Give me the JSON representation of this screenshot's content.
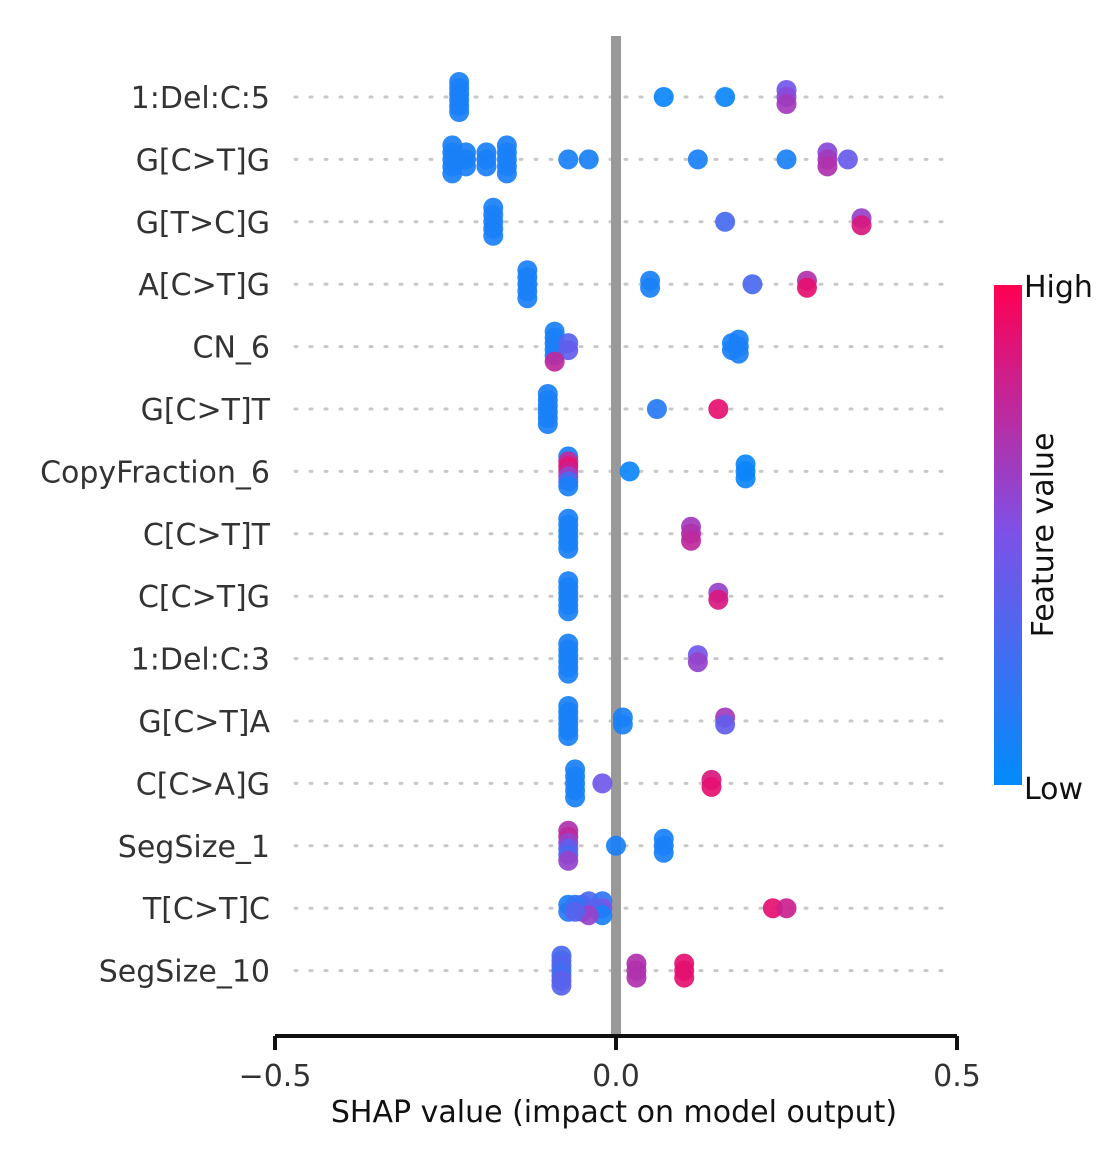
{
  "chart_data": {
    "type": "scatter",
    "subtype": "shap-beeswarm",
    "title": "",
    "xlabel": "SHAP value (impact on model output)",
    "xlim": [
      -0.5,
      0.5
    ],
    "xticks": [
      -0.5,
      0.0,
      0.5
    ],
    "xtick_labels": [
      "−0.5",
      "0.0",
      "0.5"
    ],
    "zero_line_color": "#999999",
    "colorbar": {
      "title": "Feature value",
      "high_label": "High",
      "low_label": "Low",
      "low_color": "#008bfb",
      "mid_color": "#7c52e8",
      "high_color": "#ff0052"
    },
    "features": [
      {
        "name": "1:Del:C:5",
        "points": [
          {
            "x": -0.23,
            "v": 0.1
          },
          {
            "x": -0.23,
            "v": 0.1
          },
          {
            "x": -0.23,
            "v": 0.1
          },
          {
            "x": -0.23,
            "v": 0.1
          },
          {
            "x": -0.23,
            "v": 0.1
          },
          {
            "x": -0.23,
            "v": 0.1
          },
          {
            "x": 0.07,
            "v": 0.05
          },
          {
            "x": 0.16,
            "v": 0.05
          },
          {
            "x": 0.25,
            "v": 0.45
          },
          {
            "x": 0.25,
            "v": 0.55
          },
          {
            "x": 0.25,
            "v": 0.65
          }
        ]
      },
      {
        "name": "G[C>T]G",
        "points": [
          {
            "x": -0.24,
            "v": 0.1
          },
          {
            "x": -0.24,
            "v": 0.1
          },
          {
            "x": -0.24,
            "v": 0.1
          },
          {
            "x": -0.24,
            "v": 0.1
          },
          {
            "x": -0.24,
            "v": 0.1
          },
          {
            "x": -0.22,
            "v": 0.1
          },
          {
            "x": -0.22,
            "v": 0.1
          },
          {
            "x": -0.22,
            "v": 0.1
          },
          {
            "x": -0.19,
            "v": 0.1
          },
          {
            "x": -0.19,
            "v": 0.1
          },
          {
            "x": -0.19,
            "v": 0.1
          },
          {
            "x": -0.16,
            "v": 0.1
          },
          {
            "x": -0.16,
            "v": 0.1
          },
          {
            "x": -0.16,
            "v": 0.1
          },
          {
            "x": -0.16,
            "v": 0.1
          },
          {
            "x": -0.16,
            "v": 0.1
          },
          {
            "x": -0.07,
            "v": 0.1
          },
          {
            "x": -0.04,
            "v": 0.1
          },
          {
            "x": 0.12,
            "v": 0.1
          },
          {
            "x": 0.25,
            "v": 0.1
          },
          {
            "x": 0.31,
            "v": 0.55
          },
          {
            "x": 0.31,
            "v": 0.65
          },
          {
            "x": 0.31,
            "v": 0.7
          },
          {
            "x": 0.34,
            "v": 0.42
          }
        ]
      },
      {
        "name": "G[T>C]G",
        "points": [
          {
            "x": -0.18,
            "v": 0.1
          },
          {
            "x": -0.18,
            "v": 0.1
          },
          {
            "x": -0.18,
            "v": 0.1
          },
          {
            "x": -0.18,
            "v": 0.1
          },
          {
            "x": -0.18,
            "v": 0.1
          },
          {
            "x": 0.16,
            "v": 0.28
          },
          {
            "x": 0.36,
            "v": 0.6
          },
          {
            "x": 0.36,
            "v": 0.85
          }
        ]
      },
      {
        "name": "A[C>T]G",
        "points": [
          {
            "x": -0.13,
            "v": 0.1
          },
          {
            "x": -0.13,
            "v": 0.1
          },
          {
            "x": -0.13,
            "v": 0.1
          },
          {
            "x": -0.13,
            "v": 0.1
          },
          {
            "x": -0.13,
            "v": 0.1
          },
          {
            "x": 0.05,
            "v": 0.1
          },
          {
            "x": 0.05,
            "v": 0.1
          },
          {
            "x": 0.2,
            "v": 0.3
          },
          {
            "x": 0.28,
            "v": 0.7
          },
          {
            "x": 0.28,
            "v": 0.9
          }
        ]
      },
      {
        "name": "CN_6",
        "points": [
          {
            "x": -0.09,
            "v": 0.1
          },
          {
            "x": -0.09,
            "v": 0.1
          },
          {
            "x": -0.09,
            "v": 0.1
          },
          {
            "x": -0.09,
            "v": 0.1
          },
          {
            "x": -0.09,
            "v": 0.1
          },
          {
            "x": -0.07,
            "v": 0.35
          },
          {
            "x": -0.07,
            "v": 0.4
          },
          {
            "x": -0.09,
            "v": 0.75
          },
          {
            "x": 0.18,
            "v": 0.1
          },
          {
            "x": 0.18,
            "v": 0.1
          },
          {
            "x": 0.18,
            "v": 0.1
          },
          {
            "x": 0.17,
            "v": 0.1
          },
          {
            "x": 0.17,
            "v": 0.1
          }
        ]
      },
      {
        "name": "G[C>T]T",
        "points": [
          {
            "x": -0.1,
            "v": 0.1
          },
          {
            "x": -0.1,
            "v": 0.1
          },
          {
            "x": -0.1,
            "v": 0.1
          },
          {
            "x": -0.1,
            "v": 0.1
          },
          {
            "x": -0.1,
            "v": 0.1
          },
          {
            "x": -0.1,
            "v": 0.1
          },
          {
            "x": 0.06,
            "v": 0.15
          },
          {
            "x": 0.15,
            "v": 0.9
          }
        ]
      },
      {
        "name": "CopyFraction_6",
        "points": [
          {
            "x": -0.07,
            "v": 0.1
          },
          {
            "x": -0.07,
            "v": 0.75
          },
          {
            "x": -0.07,
            "v": 0.9
          },
          {
            "x": -0.07,
            "v": 0.8
          },
          {
            "x": -0.07,
            "v": 0.6
          },
          {
            "x": -0.07,
            "v": 0.3
          },
          {
            "x": -0.07,
            "v": 0.1
          },
          {
            "x": 0.02,
            "v": 0.05
          },
          {
            "x": 0.19,
            "v": 0.05
          },
          {
            "x": 0.19,
            "v": 0.05
          },
          {
            "x": 0.19,
            "v": 0.05
          }
        ]
      },
      {
        "name": "C[C>T]T",
        "points": [
          {
            "x": -0.07,
            "v": 0.1
          },
          {
            "x": -0.07,
            "v": 0.1
          },
          {
            "x": -0.07,
            "v": 0.1
          },
          {
            "x": -0.07,
            "v": 0.1
          },
          {
            "x": -0.07,
            "v": 0.1
          },
          {
            "x": -0.07,
            "v": 0.1
          },
          {
            "x": 0.11,
            "v": 0.65
          },
          {
            "x": 0.11,
            "v": 0.7
          },
          {
            "x": 0.11,
            "v": 0.75
          }
        ]
      },
      {
        "name": "C[C>T]G",
        "points": [
          {
            "x": -0.07,
            "v": 0.1
          },
          {
            "x": -0.07,
            "v": 0.1
          },
          {
            "x": -0.07,
            "v": 0.1
          },
          {
            "x": -0.07,
            "v": 0.1
          },
          {
            "x": -0.07,
            "v": 0.1
          },
          {
            "x": -0.07,
            "v": 0.1
          },
          {
            "x": 0.15,
            "v": 0.6
          },
          {
            "x": 0.15,
            "v": 0.85
          }
        ]
      },
      {
        "name": "1:Del:C:3",
        "points": [
          {
            "x": -0.07,
            "v": 0.1
          },
          {
            "x": -0.07,
            "v": 0.1
          },
          {
            "x": -0.07,
            "v": 0.1
          },
          {
            "x": -0.07,
            "v": 0.1
          },
          {
            "x": -0.07,
            "v": 0.1
          },
          {
            "x": -0.07,
            "v": 0.1
          },
          {
            "x": 0.12,
            "v": 0.45
          },
          {
            "x": 0.12,
            "v": 0.6
          }
        ]
      },
      {
        "name": "G[C>T]A",
        "points": [
          {
            "x": -0.07,
            "v": 0.1
          },
          {
            "x": -0.07,
            "v": 0.1
          },
          {
            "x": -0.07,
            "v": 0.1
          },
          {
            "x": -0.07,
            "v": 0.1
          },
          {
            "x": -0.07,
            "v": 0.1
          },
          {
            "x": -0.07,
            "v": 0.1
          },
          {
            "x": 0.01,
            "v": 0.1
          },
          {
            "x": 0.01,
            "v": 0.1
          },
          {
            "x": 0.16,
            "v": 0.65
          },
          {
            "x": 0.16,
            "v": 0.4
          }
        ]
      },
      {
        "name": "C[C>A]G",
        "points": [
          {
            "x": -0.06,
            "v": 0.1
          },
          {
            "x": -0.06,
            "v": 0.1
          },
          {
            "x": -0.06,
            "v": 0.1
          },
          {
            "x": -0.06,
            "v": 0.1
          },
          {
            "x": -0.06,
            "v": 0.1
          },
          {
            "x": -0.02,
            "v": 0.45
          },
          {
            "x": 0.14,
            "v": 0.85
          },
          {
            "x": 0.14,
            "v": 0.9
          }
        ]
      },
      {
        "name": "SegSize_1",
        "points": [
          {
            "x": -0.07,
            "v": 0.7
          },
          {
            "x": -0.07,
            "v": 0.75
          },
          {
            "x": -0.07,
            "v": 0.6
          },
          {
            "x": -0.07,
            "v": 0.4
          },
          {
            "x": -0.07,
            "v": 0.3
          },
          {
            "x": -0.07,
            "v": 0.6
          },
          {
            "x": 0.0,
            "v": 0.1
          },
          {
            "x": 0.07,
            "v": 0.1
          },
          {
            "x": 0.07,
            "v": 0.1
          },
          {
            "x": 0.07,
            "v": 0.1
          }
        ]
      },
      {
        "name": "T[C>T]C",
        "points": [
          {
            "x": -0.07,
            "v": 0.1
          },
          {
            "x": -0.05,
            "v": 0.4
          },
          {
            "x": -0.04,
            "v": 0.3
          },
          {
            "x": -0.02,
            "v": 0.2
          },
          {
            "x": -0.02,
            "v": 0.5
          },
          {
            "x": -0.07,
            "v": 0.15
          },
          {
            "x": -0.05,
            "v": 0.55
          },
          {
            "x": -0.03,
            "v": 0.35
          },
          {
            "x": -0.06,
            "v": 0.2
          },
          {
            "x": -0.02,
            "v": 0.1
          },
          {
            "x": -0.04,
            "v": 0.6
          },
          {
            "x": -0.06,
            "v": 0.35
          },
          {
            "x": 0.23,
            "v": 0.9
          },
          {
            "x": 0.25,
            "v": 0.8
          }
        ]
      },
      {
        "name": "SegSize_10",
        "points": [
          {
            "x": -0.08,
            "v": 0.3
          },
          {
            "x": -0.08,
            "v": 0.3
          },
          {
            "x": -0.08,
            "v": 0.35
          },
          {
            "x": -0.08,
            "v": 0.3
          },
          {
            "x": -0.08,
            "v": 0.25
          },
          {
            "x": -0.08,
            "v": 0.4
          },
          {
            "x": -0.08,
            "v": 0.35
          },
          {
            "x": 0.03,
            "v": 0.7
          },
          {
            "x": 0.03,
            "v": 0.7
          },
          {
            "x": 0.03,
            "v": 0.7
          },
          {
            "x": 0.1,
            "v": 0.9
          },
          {
            "x": 0.1,
            "v": 0.9
          },
          {
            "x": 0.1,
            "v": 0.9
          }
        ]
      }
    ]
  }
}
